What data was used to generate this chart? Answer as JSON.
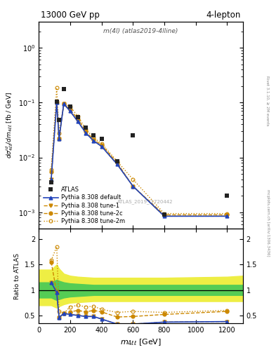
{
  "title_left": "13000 GeV pp",
  "title_right": "4-lepton",
  "plot_label": "m(4l) (atlas2019-4lline)",
  "atlas_label": "ATLAS_2019_I1720442",
  "rivet_label": "Rivet 3.1.10, ≥ 2M events",
  "mcplots_label": "mcplots.cern.ch [arXiv:1306.3436]",
  "x_data": [
    80,
    115,
    130,
    160,
    200,
    250,
    300,
    350,
    400,
    500,
    600,
    800,
    1200
  ],
  "atlas_y": [
    0.0035,
    0.105,
    0.048,
    0.175,
    0.085,
    0.055,
    0.035,
    0.025,
    0.022,
    0.0085,
    0.025,
    0.0009,
    0.002
  ],
  "default_y": [
    0.004,
    0.1,
    0.022,
    0.095,
    0.07,
    0.045,
    0.028,
    0.02,
    0.016,
    0.0075,
    0.003,
    0.00085,
    0.00085
  ],
  "tune1_y": [
    0.004,
    0.1,
    0.022,
    0.095,
    0.07,
    0.045,
    0.028,
    0.02,
    0.016,
    0.0075,
    0.003,
    0.00085,
    0.00085
  ],
  "tune2c_y": [
    0.0055,
    0.1,
    0.022,
    0.095,
    0.075,
    0.05,
    0.03,
    0.021,
    0.017,
    0.008,
    0.003,
    0.0009,
    0.0009
  ],
  "tune2m_y": [
    0.006,
    0.185,
    0.028,
    0.095,
    0.085,
    0.056,
    0.033,
    0.023,
    0.018,
    0.0085,
    0.004,
    0.00095,
    0.00095
  ],
  "ratio_default": [
    1.15,
    0.95,
    0.46,
    0.54,
    0.52,
    0.5,
    0.48,
    0.48,
    0.43,
    0.33,
    0.33,
    0.37,
    0.38
  ],
  "ratio_tune1": [
    1.15,
    0.95,
    0.46,
    0.54,
    0.52,
    0.5,
    0.48,
    0.48,
    0.43,
    0.33,
    0.33,
    0.37,
    0.38
  ],
  "ratio_tune2c": [
    1.55,
    0.95,
    0.46,
    0.54,
    0.57,
    0.6,
    0.57,
    0.6,
    0.57,
    0.47,
    0.48,
    0.52,
    0.58
  ],
  "ratio_tune2m": [
    1.58,
    1.85,
    0.58,
    0.54,
    0.67,
    0.7,
    0.67,
    0.68,
    0.62,
    0.56,
    0.58,
    0.56,
    0.6
  ],
  "band_x": [
    0,
    80,
    115,
    130,
    160,
    200,
    250,
    300,
    350,
    400,
    500,
    600,
    800,
    1200,
    1300
  ],
  "green_lo": [
    0.85,
    0.85,
    0.8,
    0.82,
    0.85,
    0.87,
    0.88,
    0.89,
    0.9,
    0.9,
    0.9,
    0.9,
    0.9,
    0.9,
    0.9
  ],
  "green_hi": [
    1.15,
    1.15,
    1.2,
    1.18,
    1.15,
    1.13,
    1.12,
    1.11,
    1.1,
    1.1,
    1.1,
    1.1,
    1.1,
    1.1,
    1.1
  ],
  "yellow_lo": [
    0.7,
    0.7,
    0.65,
    0.68,
    0.72,
    0.75,
    0.76,
    0.77,
    0.78,
    0.78,
    0.78,
    0.78,
    0.78,
    0.78,
    0.78
  ],
  "yellow_hi": [
    1.4,
    1.4,
    1.5,
    1.42,
    1.32,
    1.28,
    1.26,
    1.25,
    1.24,
    1.24,
    1.24,
    1.24,
    1.24,
    1.26,
    1.28
  ],
  "color_atlas": "#222222",
  "color_default": "#2244bb",
  "color_tune1": "#cc8800",
  "color_tune2c": "#cc8800",
  "color_tune2m": "#cc8800",
  "color_green": "#55cc55",
  "color_yellow": "#eeee44",
  "xlim": [
    0,
    1300
  ],
  "ylim_main": [
    0.0005,
    3.0
  ],
  "ylim_ratio": [
    0.35,
    2.2
  ],
  "ratio_yticks": [
    0.5,
    1.0,
    1.5,
    2.0
  ],
  "ratio_yticklabels": [
    "0.5",
    "1",
    "1.5",
    "2"
  ]
}
